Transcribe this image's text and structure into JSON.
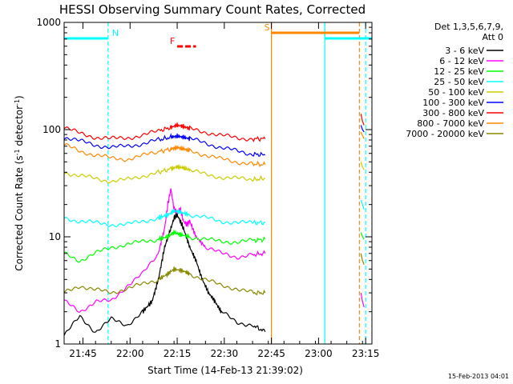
{
  "chart_data": {
    "type": "line",
    "title": "HESSI Observing Summary Count Rates, Corrected",
    "xlabel": "Start Time (14-Feb-13 21:39:02)",
    "ylabel_main": "Corrected Count Rate (s",
    "ylabel_sup1": "-1",
    "ylabel_mid": " detector",
    "ylabel_sup2": "-1",
    "ylabel_end": ")",
    "y_scale": "log",
    "ylim": [
      1,
      1000
    ],
    "y_ticks": [
      {
        "value": 1,
        "label": "1"
      },
      {
        "value": 10,
        "label": "10"
      },
      {
        "value": 100,
        "label": "100"
      },
      {
        "value": 1000,
        "label": "1000"
      }
    ],
    "xlim_min": [
      0,
      98
    ],
    "x_ticks": [
      {
        "value": 6,
        "label": "21:45"
      },
      {
        "value": 21,
        "label": "22:00"
      },
      {
        "value": 36,
        "label": "22:15"
      },
      {
        "value": 51,
        "label": "22:30"
      },
      {
        "value": 66,
        "label": "22:45"
      },
      {
        "value": 81,
        "label": "23:00"
      },
      {
        "value": 96,
        "label": "23:15"
      }
    ],
    "legend": {
      "position": "right",
      "header": "Det 1,3,5,6,7,9,",
      "att": "Att 0"
    },
    "series": [
      {
        "name": "3 - 6 keV",
        "color": "#000000",
        "points": [
          [
            0,
            1.2
          ],
          [
            5,
            1.8
          ],
          [
            10,
            1.3
          ],
          [
            15,
            1.7
          ],
          [
            20,
            1.5
          ],
          [
            25,
            2.0
          ],
          [
            28,
            2.5
          ],
          [
            30,
            4
          ],
          [
            32,
            8
          ],
          [
            34,
            12
          ],
          [
            35,
            15
          ],
          [
            36,
            16
          ],
          [
            37,
            14
          ],
          [
            38,
            12
          ],
          [
            40,
            8
          ],
          [
            42,
            6
          ],
          [
            44,
            4
          ],
          [
            46,
            3
          ],
          [
            48,
            2.5
          ],
          [
            50,
            2
          ],
          [
            55,
            1.6
          ],
          [
            60,
            1.5
          ],
          [
            64,
            1.3
          ]
        ]
      },
      {
        "name": "6 - 12 keV",
        "color": "#ff00ff",
        "points": [
          [
            0,
            2.5
          ],
          [
            5,
            2
          ],
          [
            10,
            2.5
          ],
          [
            15,
            2.5
          ],
          [
            20,
            3.5
          ],
          [
            25,
            4.5
          ],
          [
            30,
            7
          ],
          [
            32,
            12
          ],
          [
            33,
            20
          ],
          [
            34,
            28
          ],
          [
            35,
            18
          ],
          [
            36,
            17
          ],
          [
            37,
            18
          ],
          [
            38,
            14
          ],
          [
            39,
            13
          ],
          [
            40,
            14
          ],
          [
            42,
            10
          ],
          [
            45,
            8
          ],
          [
            50,
            7
          ],
          [
            55,
            6.5
          ],
          [
            60,
            6.8
          ],
          [
            64,
            7
          ]
        ]
      },
      {
        "name": "12 - 25 keV",
        "color": "#00ff00",
        "points": [
          [
            0,
            7
          ],
          [
            5,
            6
          ],
          [
            10,
            7
          ],
          [
            15,
            8
          ],
          [
            20,
            8.5
          ],
          [
            25,
            9
          ],
          [
            30,
            9.5
          ],
          [
            33,
            10
          ],
          [
            35,
            11
          ],
          [
            37,
            10.5
          ],
          [
            40,
            10
          ],
          [
            45,
            9.5
          ],
          [
            50,
            9
          ],
          [
            55,
            9
          ],
          [
            60,
            9.2
          ],
          [
            64,
            9.5
          ]
        ]
      },
      {
        "name": "25 - 50 keV",
        "color": "#00ffff",
        "points": [
          [
            0,
            15
          ],
          [
            5,
            14
          ],
          [
            10,
            13.5
          ],
          [
            15,
            13
          ],
          [
            20,
            13
          ],
          [
            25,
            14
          ],
          [
            30,
            15
          ],
          [
            33,
            16
          ],
          [
            35,
            17.5
          ],
          [
            37,
            17
          ],
          [
            40,
            16
          ],
          [
            45,
            15
          ],
          [
            50,
            14
          ],
          [
            55,
            13.5
          ],
          [
            60,
            13.5
          ],
          [
            64,
            13.5
          ]
        ]
      },
      {
        "name": "50 - 100 keV",
        "color": "#cccc00",
        "points": [
          [
            0,
            40
          ],
          [
            5,
            37
          ],
          [
            10,
            35
          ],
          [
            15,
            33
          ],
          [
            20,
            34
          ],
          [
            25,
            37
          ],
          [
            30,
            40
          ],
          [
            34,
            43
          ],
          [
            36,
            45
          ],
          [
            38,
            44
          ],
          [
            40,
            42
          ],
          [
            45,
            38
          ],
          [
            50,
            36
          ],
          [
            55,
            35
          ],
          [
            60,
            34
          ],
          [
            64,
            35
          ]
        ]
      },
      {
        "name": "100 - 300 keV",
        "color": "#0000ff",
        "points": [
          [
            0,
            85
          ],
          [
            5,
            78
          ],
          [
            10,
            72
          ],
          [
            15,
            68
          ],
          [
            20,
            70
          ],
          [
            25,
            74
          ],
          [
            30,
            80
          ],
          [
            34,
            85
          ],
          [
            36,
            87
          ],
          [
            38,
            85
          ],
          [
            40,
            82
          ],
          [
            45,
            75
          ],
          [
            50,
            68
          ],
          [
            55,
            63
          ],
          [
            60,
            59
          ],
          [
            64,
            58
          ]
        ]
      },
      {
        "name": "300 - 800 keV",
        "color": "#ff0000",
        "points": [
          [
            0,
            105
          ],
          [
            5,
            92
          ],
          [
            10,
            85
          ],
          [
            15,
            82
          ],
          [
            20,
            84
          ],
          [
            25,
            88
          ],
          [
            30,
            97
          ],
          [
            34,
            105
          ],
          [
            36,
            110
          ],
          [
            38,
            107
          ],
          [
            40,
            102
          ],
          [
            45,
            95
          ],
          [
            50,
            88
          ],
          [
            55,
            84
          ],
          [
            60,
            82
          ],
          [
            64,
            82
          ]
        ]
      },
      {
        "name": "800 - 7000 keV",
        "color": "#ff8800",
        "points": [
          [
            0,
            72
          ],
          [
            5,
            63
          ],
          [
            10,
            58
          ],
          [
            15,
            54
          ],
          [
            20,
            53
          ],
          [
            25,
            57
          ],
          [
            30,
            62
          ],
          [
            34,
            66
          ],
          [
            36,
            68
          ],
          [
            38,
            66
          ],
          [
            40,
            64
          ],
          [
            45,
            58
          ],
          [
            50,
            53
          ],
          [
            55,
            50
          ],
          [
            60,
            48
          ],
          [
            64,
            47
          ]
        ]
      },
      {
        "name": "7000 - 20000 keV",
        "color": "#888800",
        "points": [
          [
            0,
            3
          ],
          [
            5,
            3.5
          ],
          [
            10,
            3.2
          ],
          [
            15,
            3
          ],
          [
            20,
            3.3
          ],
          [
            25,
            3.6
          ],
          [
            30,
            4
          ],
          [
            33,
            4.5
          ],
          [
            35,
            5
          ],
          [
            38,
            4.8
          ],
          [
            40,
            4.5
          ],
          [
            45,
            4
          ],
          [
            50,
            3.5
          ],
          [
            55,
            3.3
          ],
          [
            60,
            3
          ],
          [
            64,
            3
          ]
        ]
      }
    ],
    "late_segment": [
      {
        "color": "#ff0000",
        "points": [
          [
            94.5,
            140
          ],
          [
            95,
            120
          ],
          [
            95.5,
            110
          ]
        ]
      },
      {
        "color": "#0000ff",
        "points": [
          [
            94.5,
            110
          ],
          [
            95,
            100
          ],
          [
            95.5,
            95
          ]
        ]
      },
      {
        "color": "#ff8800",
        "points": [
          [
            94.5,
            95
          ],
          [
            95,
            88
          ],
          [
            95.5,
            82
          ]
        ]
      },
      {
        "color": "#cccc00",
        "points": [
          [
            94.5,
            50
          ],
          [
            95,
            45
          ],
          [
            95.5,
            42
          ]
        ]
      },
      {
        "color": "#00ffff",
        "points": [
          [
            94.5,
            22
          ],
          [
            95,
            20
          ],
          [
            95.5,
            18
          ]
        ]
      },
      {
        "color": "#00ff00",
        "points": [
          [
            94.5,
            11
          ],
          [
            95,
            10
          ],
          [
            95.5,
            9.5
          ]
        ]
      },
      {
        "color": "#888800",
        "points": [
          [
            94.5,
            7
          ],
          [
            95,
            6
          ],
          [
            95.5,
            5.5
          ]
        ]
      },
      {
        "color": "#ff00ff",
        "points": [
          [
            94.5,
            3
          ],
          [
            95,
            2.5
          ],
          [
            95.5,
            2.2
          ]
        ]
      }
    ],
    "flags": [
      {
        "label": "N",
        "color": "#00ffff",
        "bar": [
          0,
          14
        ]
      },
      {
        "label": "",
        "color": "#00ffff",
        "bar": [
          83,
          98
        ]
      },
      {
        "label": "S",
        "color": "#ff8800",
        "bar": [
          66,
          94
        ]
      },
      {
        "label": "F",
        "color": "#ff0000",
        "bar": [
          36,
          42
        ]
      }
    ],
    "vlines": [
      {
        "x": 14,
        "color": "#00ffff",
        "dashed": true
      },
      {
        "x": 66,
        "color": "#ff8800",
        "dashed": false
      },
      {
        "x": 83,
        "color": "#00ffff",
        "dashed": false
      },
      {
        "x": 94,
        "color": "#ff8800",
        "dashed": true
      },
      {
        "x": 96,
        "color": "#00ffff",
        "dashed": true
      }
    ],
    "footer_date": "15-Feb-2013 04:01"
  }
}
